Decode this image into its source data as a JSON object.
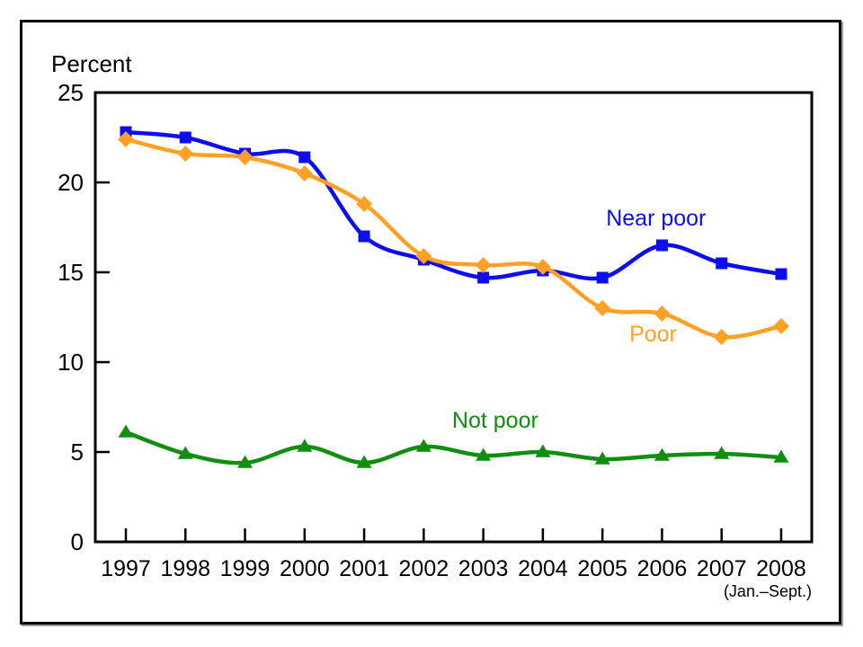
{
  "figure": {
    "y_axis_title": "Percent",
    "x_axis_note": "(Jan.–Sept.)"
  },
  "chart_data": {
    "type": "line",
    "title": "",
    "ylabel": "Percent",
    "xlabel": "",
    "x_note": "(Jan.–Sept.)",
    "x": [
      1997,
      1998,
      1999,
      2000,
      2001,
      2002,
      2003,
      2004,
      2005,
      2006,
      2007,
      2008
    ],
    "ylim": [
      0,
      25
    ],
    "yticks": [
      0,
      5,
      10,
      15,
      20,
      25
    ],
    "grid": false,
    "legend_position": "inline-labels",
    "axis_color": "#000000",
    "series": [
      {
        "name": "Near poor",
        "color": "#0d0df0",
        "marker": "square",
        "values": [
          22.8,
          22.5,
          21.6,
          21.4,
          17.0,
          15.7,
          14.7,
          15.1,
          14.7,
          16.5,
          15.5,
          14.9
        ],
        "label_pos": {
          "x": 2005.9,
          "y": 18.0
        }
      },
      {
        "name": "Poor",
        "color": "#ffa126",
        "marker": "diamond",
        "values": [
          22.4,
          21.6,
          21.4,
          20.5,
          18.8,
          15.9,
          15.4,
          15.3,
          13.0,
          12.7,
          11.4,
          12.0
        ],
        "label_pos": {
          "x": 2005.85,
          "y": 11.55
        }
      },
      {
        "name": "Not poor",
        "color": "#0f8e0f",
        "marker": "triangle",
        "values": [
          6.1,
          4.9,
          4.4,
          5.3,
          4.4,
          5.3,
          4.8,
          5.0,
          4.6,
          4.8,
          4.9,
          4.7
        ],
        "label_pos": {
          "x": 2003.2,
          "y": 6.75
        }
      }
    ]
  }
}
